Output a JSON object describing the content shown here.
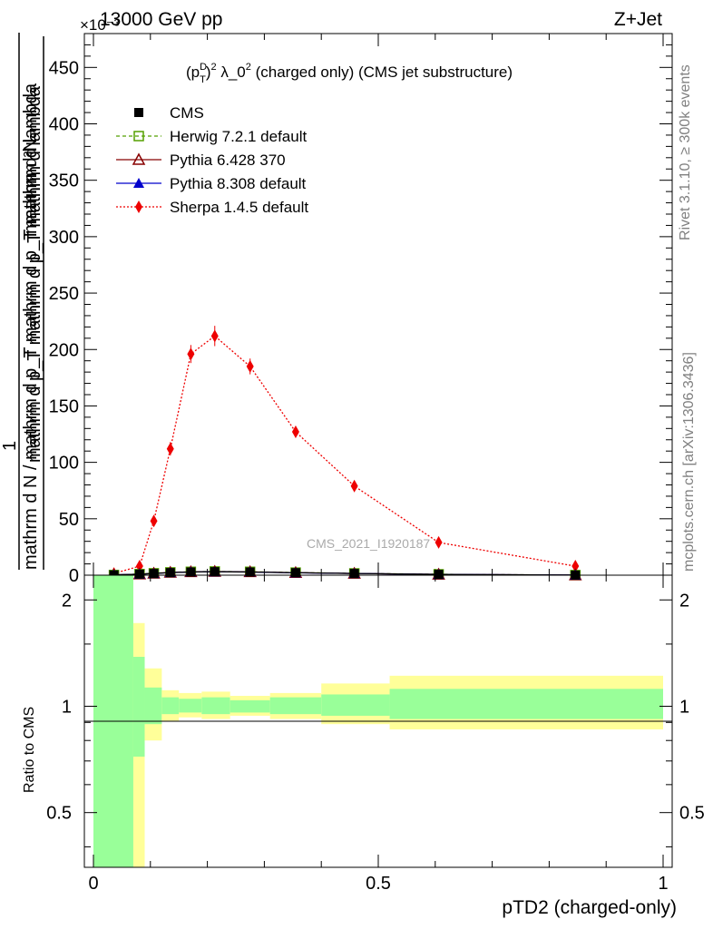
{
  "header": {
    "left": "13000 GeV pp",
    "right": "Z+Jet",
    "exponent": "×10⁻³"
  },
  "side": {
    "rivet": "Rivet 3.1.10, ≥ 300k events",
    "mcplots": "mcplots.cern.ch [arXiv:1306.3436]"
  },
  "chart_data": [
    {
      "type": "line",
      "title": "(p_T^D)^2 λ_0^2 (charged only) (CMS jet substructure)",
      "title_parts": {
        "a": "(p",
        "sup1": "D",
        "sub1": "T",
        "b": ")",
        "sup2": "2",
        "c": " λ_0",
        "sup3": "2",
        "d": " (charged only) (CMS jet substructure)"
      },
      "ylabel_parts": {
        "num": "mathrm d²N",
        "den": "mathrm d p_T mathrm d p_T mathrm d lambda",
        "one": "1",
        "norm": "mathrm d N / mathrm d p_T mathrm d p_T mathrm d lambda"
      },
      "watermark": "CMS_2021_I1920187",
      "xlim": [
        0,
        1
      ],
      "ylim": [
        0,
        480
      ],
      "yticks": [
        0,
        50,
        100,
        150,
        200,
        250,
        300,
        350,
        400,
        450
      ],
      "legend_position": "top-left",
      "x": [
        0.036,
        0.081,
        0.106,
        0.135,
        0.171,
        0.213,
        0.275,
        0.355,
        0.458,
        0.606,
        0.846
      ],
      "series": [
        {
          "name": "CMS",
          "color": "#000000",
          "marker": "square-filled",
          "values": [
            0.2,
            0.9,
            1.5,
            2.3,
            2.8,
            3.1,
            2.8,
            2.2,
            1.5,
            0.7,
            0.1
          ]
        },
        {
          "name": "Herwig 7.2.1 default",
          "color": "#55a000",
          "marker": "square-open",
          "dash": "4,3",
          "values": [
            0.2,
            1.0,
            1.7,
            2.5,
            3.0,
            3.3,
            3.0,
            2.3,
            1.6,
            0.8,
            0.1
          ]
        },
        {
          "name": "Pythia 6.428 370",
          "color": "#880000",
          "marker": "triangle-open",
          "values": [
            0.2,
            0.9,
            1.6,
            2.4,
            2.9,
            3.2,
            2.9,
            2.2,
            1.5,
            0.7,
            0.1
          ]
        },
        {
          "name": "Pythia 8.308 default",
          "color": "#0000cc",
          "marker": "triangle-filled",
          "values": [
            0.2,
            0.9,
            1.5,
            2.3,
            2.8,
            3.0,
            2.8,
            2.1,
            1.5,
            0.7,
            0.1
          ]
        },
        {
          "name": "Sherpa 1.4.5 default",
          "color": "#ee0000",
          "marker": "diamond-filled",
          "dash": "2,2",
          "values": [
            1.5,
            8,
            48,
            112,
            196,
            212,
            185,
            127,
            79,
            29,
            8
          ],
          "errors": [
            1,
            2,
            4,
            6,
            8,
            9,
            7,
            5,
            3,
            2,
            1
          ]
        }
      ]
    },
    {
      "type": "area",
      "ylabel": "Ratio to CMS",
      "xlabel": "pTD2 (charged-only)",
      "xlim": [
        0,
        1
      ],
      "ylim": [
        0.35,
        2.35
      ],
      "ylog": true,
      "xticks": [
        0,
        0.5,
        1
      ],
      "xtick_labels": [
        "0",
        "0.5",
        "1"
      ],
      "yticks": [
        0.5,
        1,
        2
      ],
      "ytick_labels": [
        "0.5",
        "1",
        "2"
      ],
      "colors": {
        "stat": "#99ff99",
        "total": "#ffff99",
        "line": "#000000"
      },
      "bands": [
        {
          "x0": 0.0,
          "x1": 0.07,
          "g_lo": 0.3,
          "g_hi": 2.4,
          "y_lo": 0.3,
          "y_hi": 2.4
        },
        {
          "x0": 0.07,
          "x1": 0.09,
          "g_lo": 0.72,
          "g_hi": 1.38,
          "y_lo": 0.3,
          "y_hi": 1.72
        },
        {
          "x0": 0.09,
          "x1": 0.12,
          "g_lo": 0.89,
          "g_hi": 1.13,
          "y_lo": 0.8,
          "y_hi": 1.28
        },
        {
          "x0": 0.12,
          "x1": 0.15,
          "g_lo": 0.95,
          "g_hi": 1.06,
          "y_lo": 0.91,
          "y_hi": 1.11
        },
        {
          "x0": 0.15,
          "x1": 0.19,
          "g_lo": 0.96,
          "g_hi": 1.05,
          "y_lo": 0.93,
          "y_hi": 1.09
        },
        {
          "x0": 0.19,
          "x1": 0.24,
          "g_lo": 0.95,
          "g_hi": 1.06,
          "y_lo": 0.92,
          "y_hi": 1.1
        },
        {
          "x0": 0.24,
          "x1": 0.31,
          "g_lo": 0.96,
          "g_hi": 1.04,
          "y_lo": 0.94,
          "y_hi": 1.07
        },
        {
          "x0": 0.31,
          "x1": 0.4,
          "g_lo": 0.95,
          "g_hi": 1.06,
          "y_lo": 0.92,
          "y_hi": 1.09
        },
        {
          "x0": 0.4,
          "x1": 0.52,
          "g_lo": 0.94,
          "g_hi": 1.08,
          "y_lo": 0.89,
          "y_hi": 1.16
        },
        {
          "x0": 0.52,
          "x1": 1.0,
          "g_lo": 0.92,
          "g_hi": 1.12,
          "y_lo": 0.86,
          "y_hi": 1.22
        }
      ]
    }
  ]
}
